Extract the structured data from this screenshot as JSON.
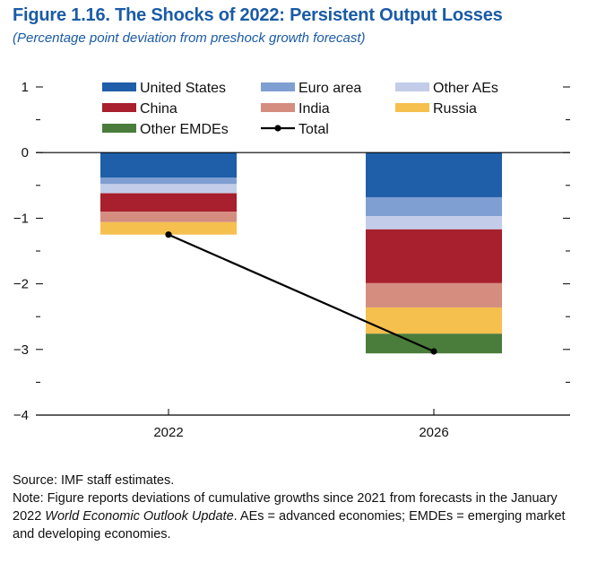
{
  "figure": {
    "title": "Figure 1.16.  The Shocks of 2022: Persistent Output Losses",
    "subtitle": "(Percentage point deviation from preshock growth forecast)"
  },
  "chart_data": {
    "type": "bar",
    "stacked": true,
    "categories": [
      "2022",
      "2026"
    ],
    "ylim": [
      -4,
      1
    ],
    "yticks": [
      1,
      0,
      -1,
      -2,
      -3,
      -4
    ],
    "ytick_labels": [
      "1",
      "0",
      "−1",
      "−2",
      "−3",
      "−4"
    ],
    "grid": false,
    "legend_position": "top",
    "series": [
      {
        "name": "United States",
        "color": "#1f5ea8",
        "values": [
          -0.38,
          -0.68
        ]
      },
      {
        "name": "Euro area",
        "color": "#7f9fd2",
        "values": [
          -0.1,
          -0.29
        ]
      },
      {
        "name": "Other AEs",
        "color": "#c3cde9",
        "values": [
          -0.14,
          -0.2
        ]
      },
      {
        "name": "China",
        "color": "#a81f2d",
        "values": [
          -0.28,
          -0.82
        ]
      },
      {
        "name": "India",
        "color": "#d48d7f",
        "values": [
          -0.16,
          -0.37
        ]
      },
      {
        "name": "Russia",
        "color": "#f5c04e",
        "values": [
          -0.19,
          -0.4
        ]
      },
      {
        "name": "Other EMDEs",
        "color": "#4a7d3b",
        "values": [
          0.0,
          -0.3
        ]
      }
    ],
    "total": {
      "name": "Total",
      "color": "#000000",
      "values": [
        -1.25,
        -3.03
      ]
    }
  },
  "footnotes": {
    "source": "Source: IMF staff estimates.",
    "note_prefix": "Note: Figure reports deviations of cumulative growths since 2021 from forecasts in the January 2022 ",
    "note_italic": "World Economic Outlook Update",
    "note_suffix": ". AEs = advanced economies; EMDEs = emerging market and developing economies."
  }
}
